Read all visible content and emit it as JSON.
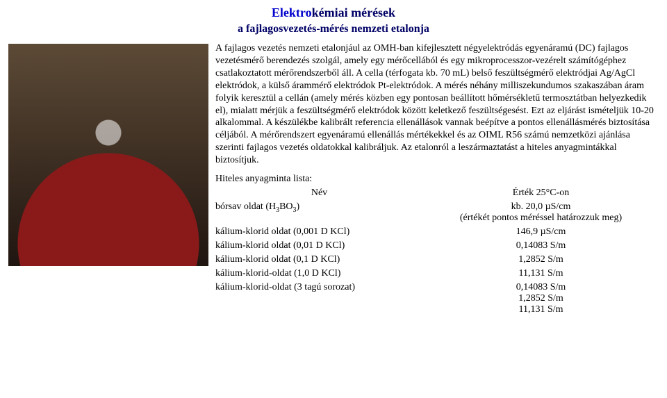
{
  "title": {
    "prefix_emph": "Elektro",
    "rest": "kémiai mérések"
  },
  "subtitle": "a fajlagosvezetés-mérés nemzeti etalonja",
  "description": "A fajlagos vezetés nemzeti etalonjául az OMH-ban kifejlesztett négyelektródás egyenáramú (DC) fajlagos vezetésmérő berendezés szolgál, amely egy mérőcellából és egy mikroprocesszor-vezérelt számítógéphez csatlakoztatott mérőrendszerből áll. A cella (térfogata kb. 70 mL) belső feszültségmérő elektródjai Ag/AgCl elektródok, a külső árammérő elektródok Pt-elektródok. A mérés néhány milliszekundumos szakaszában áram folyik keresztül a cellán (amely mérés közben egy pontosan beállított hőmérsékletű termosztátban helyezkedik el), mialatt mérjük a feszültségmérő elektródok között keletkező feszültségesést. Ezt az eljárást ismételjük 10-20 alkalommal. A készülékbe kalibrált referencia ellenállások vannak beépítve a pontos ellenállásmérés biztosítása céljából. A mérőrendszert egyenáramú ellenállás mértékekkel és az OIML R56 számú nemzetközi ajánlása szerinti fajlagos vezetés oldatokkal kalibráljuk. Az etalonról a leszármaztatást a hiteles anyagmintákkal biztosítjuk.",
  "list_heading": "Hiteles anyagminta lista:",
  "table": {
    "headers": {
      "name": "Név",
      "value": "Érték 25°C-on"
    },
    "rows": [
      {
        "name_html": "bórsav oldat (H<span class=\"sub\">3</span>BO<span class=\"sub\">3</span>)",
        "value_html": "kb. 20,0 µS/cm<br>(értékét pontos méréssel határozzuk meg)"
      },
      {
        "name_html": "kálium-klorid oldat (0,001 D KCl)",
        "value_html": "146,9 µS/cm"
      },
      {
        "name_html": "kálium-klorid oldat (0,01 D KCl)",
        "value_html": "0,14083 S/m"
      },
      {
        "name_html": "kálium-klorid oldat (0,1 D KCl)",
        "value_html": "1,2852 S/m"
      },
      {
        "name_html": "kálium-klorid-oldat (1,0 D KCl)",
        "value_html": "11,131 S/m"
      },
      {
        "name_html": "kálium-klorid-oldat (3 tagú sorozat)",
        "value_html": "0,14083 S/m<br>1,2852 S/m<br>11,131 S/m"
      }
    ]
  },
  "colors": {
    "title_color": "#000066",
    "emph_color": "#0000cc",
    "text_color": "#000000",
    "background": "#ffffff"
  },
  "fonts": {
    "body_family": "Times New Roman",
    "body_size_pt": 11,
    "title_size_pt": 14,
    "subtitle_size_pt": 12
  }
}
